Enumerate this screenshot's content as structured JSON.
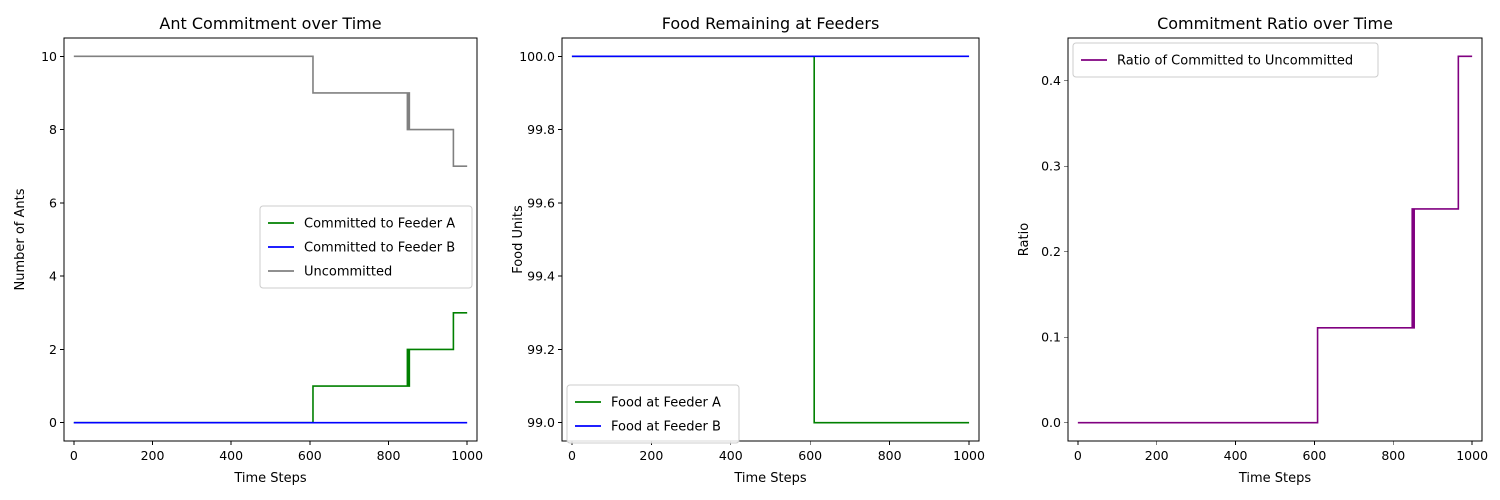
{
  "chart_data": [
    {
      "type": "line",
      "title": "Ant Commitment over Time",
      "xlabel": "Time Steps",
      "ylabel": "Number of Ants",
      "xlim": [
        -25,
        1025
      ],
      "ylim": [
        -0.5,
        10.5
      ],
      "xticks": [
        0,
        200,
        400,
        600,
        800,
        1000
      ],
      "xtick_labels": [
        "0",
        "200",
        "400",
        "600",
        "800",
        "1000"
      ],
      "yticks": [
        0,
        2,
        4,
        6,
        8,
        10
      ],
      "ytick_labels": [
        "0",
        "2",
        "4",
        "6",
        "8",
        "10"
      ],
      "grid": false,
      "legend_position": "center-right",
      "series": [
        {
          "name": "Committed to Feeder A",
          "color": "#008000",
          "step": true,
          "x": [
            0,
            608,
            848,
            850,
            851,
            852,
            853,
            965,
            1000
          ],
          "y": [
            0,
            1,
            2,
            1,
            2,
            1,
            2,
            3,
            3
          ]
        },
        {
          "name": "Committed to Feeder B",
          "color": "#0000ff",
          "step": true,
          "x": [
            0,
            1000
          ],
          "y": [
            0,
            0
          ]
        },
        {
          "name": "Uncommitted",
          "color": "#808080",
          "step": true,
          "x": [
            0,
            608,
            848,
            850,
            851,
            852,
            853,
            965,
            1000
          ],
          "y": [
            10,
            9,
            8,
            9,
            8,
            9,
            8,
            7,
            7
          ]
        }
      ]
    },
    {
      "type": "line",
      "title": "Food Remaining at Feeders",
      "xlabel": "Time Steps",
      "ylabel": "Food Units",
      "xlim": [
        -25,
        1025
      ],
      "ylim": [
        98.95,
        100.05
      ],
      "xticks": [
        0,
        200,
        400,
        600,
        800,
        1000
      ],
      "xtick_labels": [
        "0",
        "200",
        "400",
        "600",
        "800",
        "1000"
      ],
      "yticks": [
        99.0,
        99.2,
        99.4,
        99.6,
        99.8,
        100.0
      ],
      "ytick_labels": [
        "99.0",
        "99.2",
        "99.4",
        "99.6",
        "99.8",
        "100.0"
      ],
      "grid": false,
      "legend_position": "bottom-left",
      "series": [
        {
          "name": "Food at Feeder A",
          "color": "#008000",
          "step": true,
          "x": [
            0,
            610,
            1000
          ],
          "y": [
            100,
            99,
            99
          ]
        },
        {
          "name": "Food at Feeder B",
          "color": "#0000ff",
          "step": true,
          "x": [
            0,
            1000
          ],
          "y": [
            100,
            100
          ]
        }
      ]
    },
    {
      "type": "line",
      "title": "Commitment Ratio over Time",
      "xlabel": "Time Steps",
      "ylabel": "Ratio",
      "xlim": [
        -25,
        1025
      ],
      "ylim": [
        -0.0214,
        0.45
      ],
      "xticks": [
        0,
        200,
        400,
        600,
        800,
        1000
      ],
      "xtick_labels": [
        "0",
        "200",
        "400",
        "600",
        "800",
        "1000"
      ],
      "yticks": [
        0.0,
        0.1,
        0.2,
        0.3,
        0.4
      ],
      "ytick_labels": [
        "0.0",
        "0.1",
        "0.2",
        "0.3",
        "0.4"
      ],
      "grid": false,
      "legend_position": "top-left",
      "series": [
        {
          "name": "Ratio of Committed to Uncommitted",
          "color": "#800080",
          "step": true,
          "x": [
            0,
            608,
            848,
            850,
            851,
            852,
            853,
            965,
            1000
          ],
          "y": [
            0,
            0.111,
            0.25,
            0.111,
            0.25,
            0.111,
            0.25,
            0.4286,
            0.4286
          ]
        }
      ]
    }
  ]
}
